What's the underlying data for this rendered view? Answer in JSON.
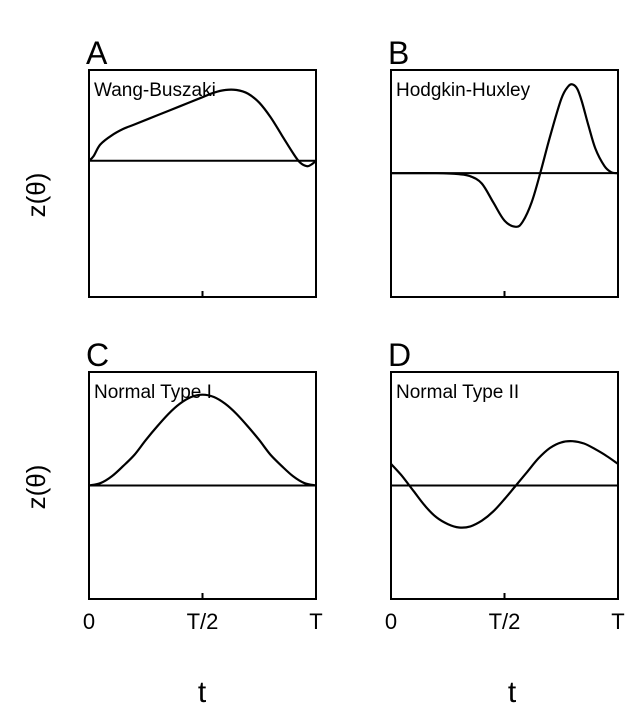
{
  "figure": {
    "ylabel_top": "z(θ)",
    "ylabel_bottom": "z(θ)",
    "xlabel_left": "t",
    "xlabel_right": "t"
  },
  "chart_data": [
    {
      "type": "line",
      "panel_letter": "A",
      "title": "Wang-Buszaki",
      "xlabel": "",
      "ylabel": "z(θ)",
      "x_ticks": [
        "",
        "",
        ""
      ],
      "x_tick_positions": [
        0,
        0.5,
        1
      ],
      "xlim": [
        0,
        1
      ],
      "ylim": [
        -1.5,
        1.0
      ],
      "grid": false,
      "baseline": 0,
      "series": [
        {
          "color": "#000000",
          "x": [
            0,
            0.02,
            0.05,
            0.1,
            0.15,
            0.2,
            0.3,
            0.4,
            0.5,
            0.55,
            0.6,
            0.65,
            0.7,
            0.75,
            0.8,
            0.85,
            0.9,
            0.93,
            0.96,
            0.98,
            1.0
          ],
          "y": [
            0,
            0.05,
            0.18,
            0.28,
            0.35,
            0.4,
            0.5,
            0.6,
            0.7,
            0.75,
            0.78,
            0.78,
            0.74,
            0.64,
            0.48,
            0.28,
            0.08,
            -0.02,
            -0.06,
            -0.04,
            0
          ]
        }
      ]
    },
    {
      "type": "line",
      "panel_letter": "B",
      "title": "Hodgkin-Huxley",
      "xlabel": "",
      "ylabel": "",
      "x_ticks": [
        "",
        "",
        ""
      ],
      "x_tick_positions": [
        0,
        0.5,
        1
      ],
      "xlim": [
        0,
        1
      ],
      "ylim": [
        -1.2,
        1.0
      ],
      "grid": false,
      "baseline": 0,
      "series": [
        {
          "color": "#000000",
          "x": [
            0,
            0.2,
            0.3,
            0.35,
            0.4,
            0.45,
            0.5,
            0.55,
            0.58,
            0.62,
            0.66,
            0.7,
            0.75,
            0.78,
            0.8,
            0.82,
            0.84,
            0.87,
            0.9,
            0.94,
            0.97,
            1.0
          ],
          "y": [
            0,
            0,
            -0.01,
            -0.03,
            -0.1,
            -0.28,
            -0.46,
            -0.52,
            -0.47,
            -0.28,
            0.02,
            0.35,
            0.72,
            0.84,
            0.86,
            0.82,
            0.7,
            0.46,
            0.24,
            0.07,
            0.01,
            0
          ]
        }
      ]
    },
    {
      "type": "line",
      "panel_letter": "C",
      "title": "Normal Type I",
      "xlabel": "",
      "ylabel": "z(θ)",
      "x_ticks": [
        "0",
        "T/2",
        "T"
      ],
      "x_tick_positions": [
        0,
        0.5,
        1
      ],
      "xlim": [
        0,
        1
      ],
      "ylim": [
        -1.0,
        1.0
      ],
      "grid": false,
      "baseline": 0,
      "series": [
        {
          "color": "#000000",
          "x": [
            0,
            0.05,
            0.1,
            0.15,
            0.2,
            0.25,
            0.3,
            0.35,
            0.4,
            0.45,
            0.5,
            0.55,
            0.6,
            0.65,
            0.7,
            0.75,
            0.8,
            0.85,
            0.9,
            0.95,
            1.0
          ],
          "y": [
            0,
            0.02,
            0.08,
            0.17,
            0.27,
            0.4,
            0.52,
            0.63,
            0.72,
            0.78,
            0.8,
            0.78,
            0.72,
            0.63,
            0.52,
            0.4,
            0.27,
            0.17,
            0.08,
            0.02,
            0
          ]
        }
      ]
    },
    {
      "type": "line",
      "panel_letter": "D",
      "title": "Normal Type II",
      "xlabel": "",
      "ylabel": "",
      "x_ticks": [
        "0",
        "T/2",
        "T"
      ],
      "x_tick_positions": [
        0,
        0.5,
        1
      ],
      "xlim": [
        0,
        1
      ],
      "ylim": [
        -1.0,
        1.0
      ],
      "grid": false,
      "baseline": 0,
      "series": [
        {
          "color": "#000000",
          "x": [
            0,
            0.05,
            0.1,
            0.15,
            0.2,
            0.25,
            0.3,
            0.35,
            0.4,
            0.45,
            0.5,
            0.55,
            0.6,
            0.65,
            0.7,
            0.75,
            0.8,
            0.85,
            0.9,
            0.95,
            1.0
          ],
          "y": [
            0.19,
            0.08,
            -0.05,
            -0.18,
            -0.28,
            -0.34,
            -0.37,
            -0.36,
            -0.31,
            -0.23,
            -0.12,
            0.0,
            0.12,
            0.24,
            0.33,
            0.38,
            0.39,
            0.37,
            0.32,
            0.26,
            0.19
          ]
        }
      ]
    }
  ]
}
